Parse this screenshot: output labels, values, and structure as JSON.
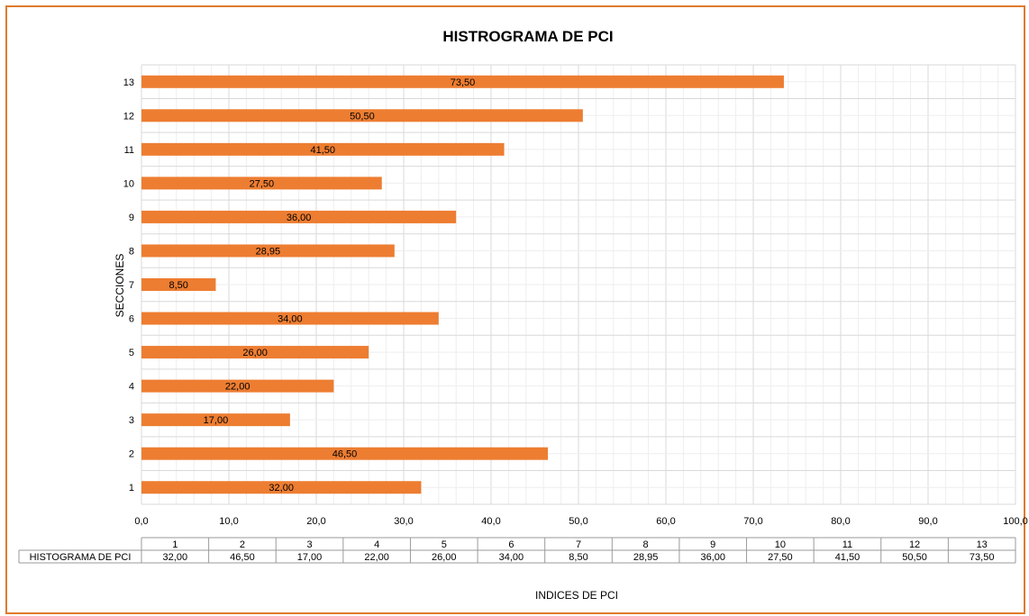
{
  "chart_data": {
    "type": "bar",
    "orientation": "horizontal",
    "title": "HISTROGRAMA DE PCI",
    "xlabel": "INDICES DE PCI",
    "ylabel": "SECCIONES",
    "categories": [
      "1",
      "2",
      "3",
      "4",
      "5",
      "6",
      "7",
      "8",
      "9",
      "10",
      "11",
      "12",
      "13"
    ],
    "series": [
      {
        "name": "HISTOGRAMA DE PCI",
        "values": [
          32.0,
          46.5,
          17.0,
          22.0,
          26.0,
          34.0,
          8.5,
          28.95,
          36.0,
          27.5,
          41.5,
          50.5,
          73.5
        ],
        "labels": [
          "32,00",
          "46,50",
          "17,00",
          "22,00",
          "26,00",
          "34,00",
          "8,50",
          "28,95",
          "36,00",
          "27,50",
          "41,50",
          "50,50",
          "73,50"
        ],
        "color": "#ed7d31"
      }
    ],
    "xlim": [
      0,
      100
    ],
    "x_ticks": [
      "0,0",
      "10,0",
      "20,0",
      "30,0",
      "40,0",
      "50,0",
      "60,0",
      "70,0",
      "80,0",
      "90,0",
      "100,0"
    ],
    "grid": true,
    "data_table": true,
    "legend": "none"
  },
  "colors": {
    "bar": "#ed7d31",
    "frame": "#e07a2e",
    "grid_major": "#d9d9d9",
    "grid_minor": "#eeeeee"
  }
}
